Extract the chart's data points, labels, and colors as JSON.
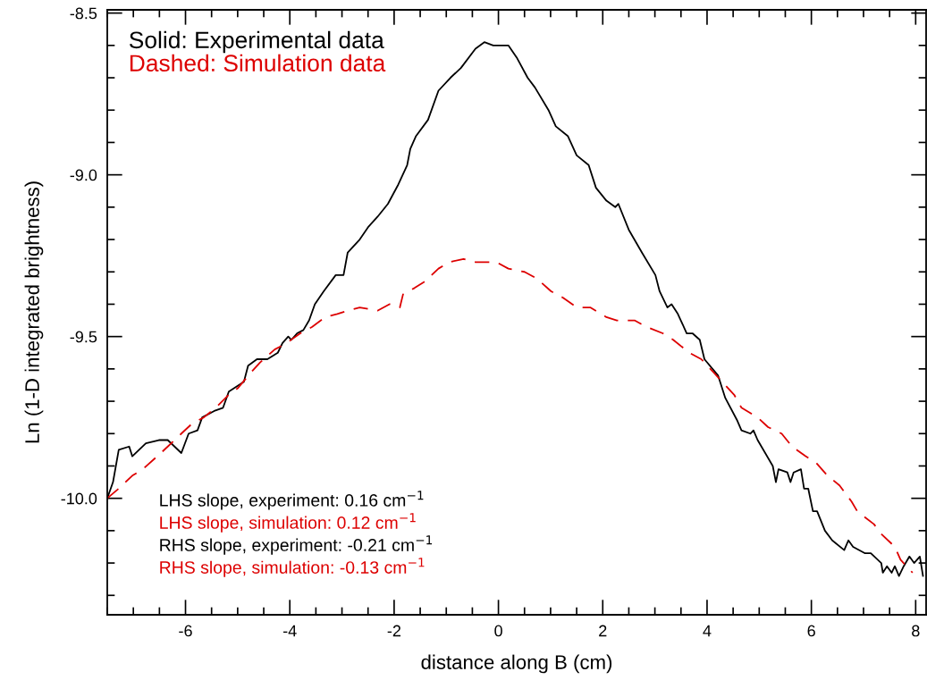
{
  "chart_data": {
    "type": "line",
    "xlabel": "distance along B (cm)",
    "ylabel": "Ln (1-D integrated brightness)",
    "xlim": [
      -7.5,
      8.2
    ],
    "ylim": [
      -10.36,
      -8.49
    ],
    "xticks": [
      -6,
      -4,
      -2,
      0,
      2,
      4,
      6,
      8
    ],
    "yticks": [
      {
        "value": -8.5,
        "label": "-8.5"
      },
      {
        "value": -9.0,
        "label": "-9.0"
      },
      {
        "value": -9.5,
        "label": "-9.5"
      },
      {
        "value": -10.0,
        "label": "-10.0"
      }
    ],
    "grid": false,
    "legend": "top left",
    "marker": "none",
    "series": [
      {
        "name": "Solid: Experimental data",
        "color": "#000000",
        "line_style": "solid",
        "x": [
          -7.5,
          -7.39,
          -7.28,
          -7.08,
          -7.02,
          -6.76,
          -6.51,
          -6.34,
          -6.08,
          -5.94,
          -5.77,
          -5.68,
          -5.45,
          -5.28,
          -5.17,
          -4.88,
          -4.8,
          -4.63,
          -4.43,
          -4.23,
          -4.14,
          -4.03,
          -3.97,
          -3.86,
          -3.74,
          -3.63,
          -3.52,
          -3.35,
          -3.12,
          -2.97,
          -2.89,
          -2.66,
          -2.49,
          -2.32,
          -2.12,
          -1.92,
          -1.75,
          -1.69,
          -1.58,
          -1.35,
          -1.15,
          -0.92,
          -0.72,
          -0.44,
          -0.27,
          -0.1,
          0.02,
          0.19,
          0.36,
          0.56,
          0.7,
          0.96,
          1.1,
          1.33,
          1.5,
          1.73,
          1.87,
          2.07,
          2.24,
          2.3,
          2.5,
          2.75,
          3.01,
          3.09,
          3.24,
          3.32,
          3.44,
          3.61,
          3.72,
          3.86,
          3.95,
          4.21,
          4.35,
          4.58,
          4.66,
          4.83,
          4.89,
          4.97,
          5.26,
          5.32,
          5.37,
          5.54,
          5.6,
          5.66,
          5.8,
          5.86,
          5.94,
          6.03,
          6.11,
          6.26,
          6.4,
          6.63,
          6.71,
          6.8,
          7.03,
          7.14,
          7.34,
          7.37,
          7.45,
          7.54,
          7.6,
          7.68,
          7.77,
          7.88,
          7.97,
          8.08,
          8.14
        ],
        "values": [
          -10.0,
          -9.95,
          -9.85,
          -9.84,
          -9.87,
          -9.83,
          -9.82,
          -9.82,
          -9.86,
          -9.8,
          -9.79,
          -9.75,
          -9.73,
          -9.72,
          -9.67,
          -9.64,
          -9.59,
          -9.57,
          -9.57,
          -9.55,
          -9.52,
          -9.5,
          -9.51,
          -9.49,
          -9.48,
          -9.45,
          -9.4,
          -9.36,
          -9.31,
          -9.31,
          -9.24,
          -9.2,
          -9.16,
          -9.13,
          -9.09,
          -9.03,
          -8.97,
          -8.92,
          -8.88,
          -8.83,
          -8.74,
          -8.7,
          -8.67,
          -8.61,
          -8.59,
          -8.6,
          -8.6,
          -8.6,
          -8.64,
          -8.7,
          -8.73,
          -8.8,
          -8.85,
          -8.88,
          -8.94,
          -8.97,
          -9.04,
          -9.08,
          -9.1,
          -9.09,
          -9.17,
          -9.24,
          -9.31,
          -9.36,
          -9.41,
          -9.4,
          -9.43,
          -9.49,
          -9.49,
          -9.51,
          -9.57,
          -9.62,
          -9.69,
          -9.76,
          -9.79,
          -9.8,
          -9.79,
          -9.82,
          -9.9,
          -9.95,
          -9.91,
          -9.92,
          -9.95,
          -9.92,
          -9.91,
          -9.97,
          -9.97,
          -10.04,
          -10.04,
          -10.1,
          -10.13,
          -10.16,
          -10.13,
          -10.15,
          -10.17,
          -10.17,
          -10.2,
          -10.23,
          -10.21,
          -10.23,
          -10.21,
          -10.24,
          -10.21,
          -10.18,
          -10.2,
          -10.18,
          -10.24
        ]
      },
      {
        "name": "Dashed: Simulation data",
        "color": "#dd0000",
        "line_style": "dashed",
        "x": [
          -7.5,
          -7.28,
          -7.02,
          -6.82,
          -6.54,
          -6.34,
          -6.08,
          -5.88,
          -5.65,
          -5.42,
          -5.17,
          -5.0,
          -4.74,
          -4.57,
          -4.29,
          -4.06,
          -3.8,
          -3.57,
          -3.32,
          -3.09,
          -2.89,
          -2.66,
          -2.32,
          -2.09,
          -1.89,
          -1.83,
          -1.61,
          -1.41,
          -1.15,
          -0.95,
          -0.67,
          -0.44,
          -0.04,
          0.19,
          0.5,
          0.73,
          1.01,
          1.24,
          1.5,
          1.76,
          2.07,
          2.27,
          2.61,
          2.84,
          3.15,
          3.35,
          3.66,
          3.89,
          4.12,
          4.29,
          4.52,
          4.66,
          4.97,
          5.17,
          5.43,
          5.63,
          5.89,
          6.09,
          6.31,
          6.54,
          6.77,
          6.88,
          7.2,
          7.34,
          7.6,
          7.71,
          7.94
        ],
        "values": [
          -10.0,
          -9.97,
          -9.93,
          -9.91,
          -9.87,
          -9.84,
          -9.8,
          -9.77,
          -9.75,
          -9.72,
          -9.68,
          -9.66,
          -9.61,
          -9.58,
          -9.54,
          -9.52,
          -9.49,
          -9.47,
          -9.44,
          -9.43,
          -9.42,
          -9.41,
          -9.42,
          -9.4,
          -9.41,
          -9.37,
          -9.35,
          -9.33,
          -9.29,
          -9.27,
          -9.26,
          -9.27,
          -9.27,
          -9.29,
          -9.3,
          -9.32,
          -9.36,
          -9.38,
          -9.41,
          -9.41,
          -9.44,
          -9.45,
          -9.45,
          -9.47,
          -9.49,
          -9.51,
          -9.55,
          -9.57,
          -9.61,
          -9.64,
          -9.68,
          -9.72,
          -9.75,
          -9.78,
          -9.8,
          -9.84,
          -9.87,
          -9.89,
          -9.93,
          -9.96,
          -10.01,
          -10.04,
          -10.08,
          -10.11,
          -10.15,
          -10.19,
          -10.23
        ]
      }
    ],
    "annotations": [
      "LHS slope, experiment: 0.16 cm$^{−1}$",
      "LHS slope, simulation: 0.12 cm$^{−1}$",
      "RHS slope, experiment: -0.21 cm$^{−1}$",
      "RHS slope, simulation: -0.13 cm$^{−1}$"
    ]
  }
}
